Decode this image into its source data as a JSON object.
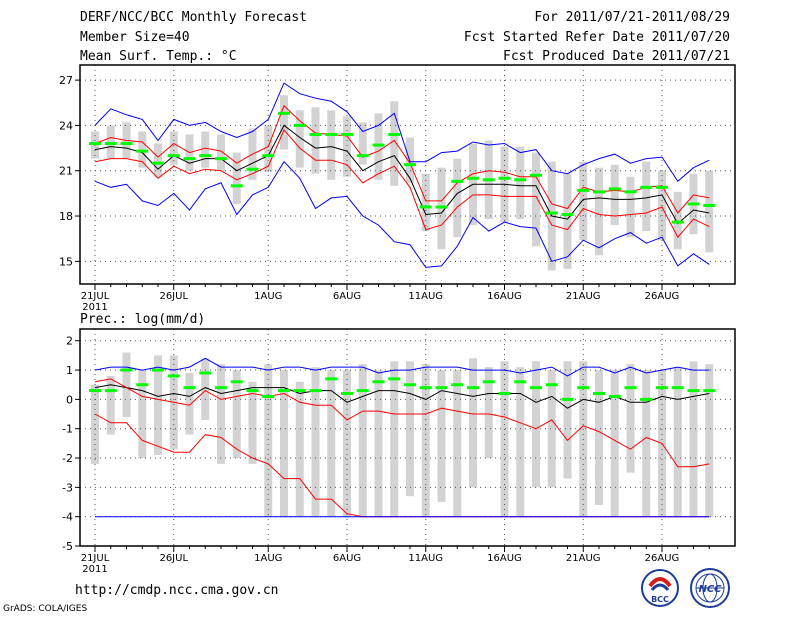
{
  "header": {
    "title": "DERF/NCC/BCC Monthly Forecast",
    "member_size": "Member Size=40",
    "variable1": "Mean Surf. Temp.: °C",
    "period": "For 2011/07/21-2011/08/29",
    "refer_date": "Fcst Started Refer Date 2011/07/20",
    "produced_date": "Fcst Produced Date 2011/07/21"
  },
  "footer": {
    "url": "http://cmdp.ncc.cma.gov.cn",
    "credit": "GrADS: COLA/IGES",
    "logo_bcc_text": "BCC",
    "logo_ncc_text": "NCC"
  },
  "colors": {
    "box": "#d3d3d3",
    "mean": "#00ff00",
    "median": "#000000",
    "inner": "#ff0000",
    "outer": "#0000ff",
    "grid": "#555555"
  },
  "chart_data": [
    {
      "type": "box-line",
      "title": "Mean Surf. Temp.: °C",
      "ylim": [
        13.5,
        28
      ],
      "yticks": [
        15,
        18,
        21,
        24,
        27
      ],
      "xtick_labels": [
        "21JUL",
        "26JUL",
        "1AUG",
        "6AUG",
        "11AUG",
        "16AUG",
        "21AUG",
        "26AUG"
      ],
      "xtick_days": [
        0,
        5,
        11,
        16,
        21,
        26,
        31,
        36
      ],
      "year_label": "2011",
      "days": 40,
      "box_low": [
        21.8,
        21.8,
        21.8,
        21.2,
        20.6,
        21.4,
        21.0,
        21.2,
        21.0,
        18.8,
        20.4,
        20.9,
        22.4,
        21.2,
        20.8,
        20.4,
        20.6,
        21.4,
        20.4,
        20.0,
        20.2,
        17.0,
        15.8,
        16.6,
        17.4,
        17.8,
        17.6,
        17.8,
        16.0,
        14.4,
        14.5,
        16.4,
        15.4,
        17.4,
        16.6,
        17.0,
        16.4,
        15.8,
        16.8,
        15.6
      ],
      "box_high": [
        23.6,
        24.0,
        24.2,
        23.6,
        22.8,
        23.6,
        23.4,
        23.6,
        23.4,
        22.2,
        23.8,
        24.0,
        26.0,
        25.0,
        25.2,
        25.0,
        24.6,
        24.2,
        24.8,
        25.6,
        23.2,
        20.8,
        21.2,
        21.8,
        22.8,
        23.0,
        22.6,
        22.6,
        22.2,
        21.6,
        20.8,
        21.6,
        21.2,
        21.4,
        20.6,
        21.6,
        21.0,
        19.6,
        20.8,
        21.0
      ],
      "series": [
        {
          "name": "ensemble mean",
          "style": "bar",
          "values": [
            22.8,
            22.8,
            22.8,
            22.3,
            21.5,
            22.0,
            21.8,
            22.0,
            21.8,
            20.0,
            21.1,
            22.0,
            24.8,
            24.0,
            23.4,
            23.4,
            23.4,
            22.0,
            22.7,
            23.4,
            21.4,
            18.6,
            18.6,
            20.3,
            20.5,
            20.4,
            20.5,
            20.4,
            20.7,
            18.2,
            18.1,
            19.7,
            19.6,
            19.8,
            19.6,
            19.9,
            19.9,
            17.6,
            18.8,
            18.7
          ]
        },
        {
          "name": "median",
          "style": "line",
          "values": [
            22.4,
            22.6,
            22.5,
            22.2,
            21.1,
            22.0,
            21.5,
            21.8,
            21.8,
            21.0,
            21.5,
            22.0,
            24.0,
            23.2,
            22.5,
            22.6,
            22.3,
            21.0,
            21.6,
            22.0,
            20.5,
            18.1,
            18.2,
            19.5,
            20.1,
            20.1,
            20.1,
            20.0,
            20.0,
            18.0,
            17.8,
            19.1,
            19.2,
            19.1,
            19.1,
            19.2,
            19.4,
            17.5,
            18.4,
            18.2
          ]
        },
        {
          "name": "inner upper",
          "style": "line",
          "values": [
            22.8,
            23.2,
            23.0,
            22.9,
            21.9,
            22.8,
            22.2,
            22.5,
            22.3,
            21.5,
            22.1,
            22.6,
            25.3,
            24.3,
            23.5,
            23.4,
            23.3,
            21.9,
            22.3,
            23.0,
            21.5,
            19.0,
            19.0,
            20.2,
            20.8,
            21.0,
            20.9,
            20.6,
            20.6,
            18.8,
            18.5,
            19.9,
            19.6,
            19.7,
            19.6,
            19.9,
            20.0,
            18.2,
            19.4,
            19.2
          ]
        },
        {
          "name": "inner lower",
          "style": "line",
          "values": [
            21.6,
            21.8,
            21.8,
            21.6,
            20.5,
            21.3,
            20.8,
            21.1,
            21.0,
            20.4,
            20.8,
            21.3,
            23.7,
            22.5,
            21.7,
            21.7,
            21.4,
            20.2,
            20.8,
            21.3,
            19.9,
            17.1,
            17.4,
            18.6,
            19.4,
            19.4,
            19.3,
            19.3,
            19.3,
            17.4,
            17.1,
            18.5,
            18.1,
            18.0,
            18.1,
            18.2,
            18.6,
            16.6,
            17.8,
            17.3
          ]
        },
        {
          "name": "outer upper",
          "style": "line",
          "values": [
            24.0,
            25.1,
            24.7,
            24.4,
            23.0,
            24.4,
            24.0,
            24.2,
            23.6,
            23.2,
            23.6,
            24.4,
            26.8,
            26.1,
            25.8,
            25.6,
            24.9,
            23.6,
            24.0,
            24.8,
            21.6,
            21.6,
            22.2,
            22.3,
            22.9,
            22.7,
            22.8,
            22.2,
            22.4,
            21.0,
            20.8,
            21.4,
            21.8,
            22.1,
            21.5,
            21.8,
            21.9,
            20.3,
            21.2,
            21.7
          ]
        },
        {
          "name": "outer lower",
          "style": "line",
          "values": [
            20.3,
            19.9,
            20.1,
            19.0,
            18.7,
            19.5,
            18.4,
            19.8,
            20.2,
            18.1,
            19.4,
            19.9,
            21.6,
            20.5,
            18.5,
            19.2,
            19.3,
            18.0,
            17.4,
            16.3,
            16.1,
            14.6,
            14.7,
            16.0,
            17.9,
            17.0,
            17.6,
            17.3,
            17.2,
            15.0,
            15.3,
            16.4,
            15.9,
            16.5,
            16.9,
            16.2,
            16.6,
            14.7,
            15.5,
            14.8
          ]
        }
      ]
    },
    {
      "type": "box-line",
      "title": "Prec.: log(mm/d)",
      "ylim": [
        -5,
        2.4
      ],
      "yticks": [
        -5,
        -4,
        -3,
        -2,
        -1,
        0,
        1,
        2
      ],
      "xtick_labels": [
        "21JUL",
        "26JUL",
        "1AUG",
        "6AUG",
        "11AUG",
        "16AUG",
        "21AUG",
        "26AUG"
      ],
      "xtick_days": [
        0,
        5,
        11,
        16,
        21,
        26,
        31,
        36
      ],
      "year_label": "2011",
      "days": 40,
      "box_low": [
        -2.2,
        -1.2,
        -0.6,
        -2.0,
        -1.9,
        -1.7,
        -1.2,
        -0.7,
        -2.2,
        -2.0,
        -2.2,
        -4.0,
        -4.0,
        -4.0,
        -4.0,
        -4.0,
        -4.0,
        -4.0,
        -4.0,
        -4.0,
        -3.3,
        -4.0,
        -3.5,
        -4.0,
        -3.0,
        -2.0,
        -4.0,
        -4.0,
        -3.0,
        -3.0,
        -2.7,
        -4.0,
        -3.6,
        -4.0,
        -2.5,
        -4.0,
        -4.0,
        -4.0,
        -4.0,
        -4.0
      ],
      "box_high": [
        0.5,
        0.8,
        1.6,
        1.0,
        1.5,
        1.5,
        0.9,
        1.4,
        1.2,
        1.0,
        0.6,
        1.2,
        1.0,
        0.6,
        1.1,
        1.0,
        1.0,
        1.2,
        1.0,
        1.3,
        1.3,
        1.2,
        1.0,
        1.0,
        1.4,
        1.1,
        1.3,
        1.1,
        1.3,
        1.0,
        1.3,
        1.3,
        1.0,
        1.0,
        1.2,
        1.0,
        1.0,
        1.1,
        1.3,
        1.2
      ],
      "series": [
        {
          "name": "ensemble mean",
          "style": "bar",
          "values": [
            0.3,
            0.3,
            1.0,
            0.5,
            1.0,
            0.8,
            0.4,
            0.9,
            0.4,
            0.6,
            0.3,
            0.1,
            0.3,
            0.3,
            0.3,
            0.7,
            0.2,
            0.3,
            0.6,
            0.7,
            0.5,
            0.4,
            0.4,
            0.5,
            0.4,
            0.6,
            0.2,
            0.6,
            0.4,
            0.5,
            0.0,
            0.4,
            0.2,
            0.1,
            0.4,
            0.0,
            0.4,
            0.4,
            0.3,
            0.3
          ]
        },
        {
          "name": "median",
          "style": "line",
          "values": [
            0.4,
            0.5,
            0.4,
            0.3,
            0.1,
            0.2,
            0.1,
            0.4,
            0.2,
            0.3,
            0.4,
            0.4,
            0.4,
            0.2,
            0.3,
            0.3,
            -0.1,
            0.1,
            0.3,
            0.3,
            0.2,
            0.0,
            0.3,
            0.2,
            0.1,
            0.2,
            0.2,
            0.2,
            -0.1,
            0.1,
            -0.3,
            0.0,
            -0.1,
            0.1,
            -0.1,
            -0.1,
            0.1,
            0.0,
            0.1,
            0.2
          ]
        },
        {
          "name": "inner upper",
          "style": "line",
          "values": [
            0.6,
            0.7,
            0.4,
            0.1,
            0.0,
            -0.1,
            -0.2,
            0.3,
            0.0,
            0.1,
            0.2,
            0.1,
            0.2,
            -0.1,
            -0.2,
            -0.2,
            -0.7,
            -0.4,
            -0.4,
            -0.5,
            -0.5,
            -0.5,
            -0.3,
            -0.4,
            -0.5,
            -0.5,
            -0.6,
            -0.8,
            -1.0,
            -0.7,
            -1.4,
            -0.9,
            -1.1,
            -1.4,
            -1.7,
            -1.3,
            -1.5,
            -2.3,
            -2.3,
            -2.2
          ]
        },
        {
          "name": "inner lower",
          "style": "line",
          "values": [
            -0.5,
            -0.8,
            -0.8,
            -1.4,
            -1.6,
            -1.8,
            -1.8,
            -1.2,
            -1.3,
            -1.7,
            -2.0,
            -2.2,
            -2.7,
            -2.7,
            -3.4,
            -3.4,
            -3.9,
            -4.0,
            -4.0,
            -4.0,
            -4.0,
            -4.0,
            -4.0,
            -4.0,
            -4.0,
            -4.0,
            -4.0,
            -4.0,
            -4.0,
            -4.0,
            -4.0,
            -4.0,
            -4.0,
            -4.0,
            -4.0,
            -4.0,
            -4.0,
            -4.0,
            -4.0,
            -4.0
          ]
        },
        {
          "name": "outer upper",
          "style": "line",
          "values": [
            1.0,
            1.1,
            1.1,
            1.0,
            1.1,
            1.0,
            1.1,
            1.4,
            1.1,
            1.1,
            1.1,
            1.0,
            1.1,
            1.1,
            1.0,
            1.1,
            1.1,
            1.1,
            0.9,
            1.0,
            1.0,
            1.1,
            1.1,
            1.1,
            1.0,
            1.0,
            1.0,
            0.9,
            1.0,
            1.1,
            0.8,
            1.1,
            1.1,
            0.9,
            1.1,
            0.9,
            1.0,
            1.1,
            1.0,
            1.0
          ]
        },
        {
          "name": "outer lower",
          "style": "line",
          "values": [
            -4.0,
            -4.0,
            -4.0,
            -4.0,
            -4.0,
            -4.0,
            -4.0,
            -4.0,
            -4.0,
            -4.0,
            -4.0,
            -4.0,
            -4.0,
            -4.0,
            -4.0,
            -4.0,
            -4.0,
            -4.0,
            -4.0,
            -4.0,
            -4.0,
            -4.0,
            -4.0,
            -4.0,
            -4.0,
            -4.0,
            -4.0,
            -4.0,
            -4.0,
            -4.0,
            -4.0,
            -4.0,
            -4.0,
            -4.0,
            -4.0,
            -4.0,
            -4.0,
            -4.0,
            -4.0,
            -4.0
          ]
        }
      ]
    }
  ]
}
